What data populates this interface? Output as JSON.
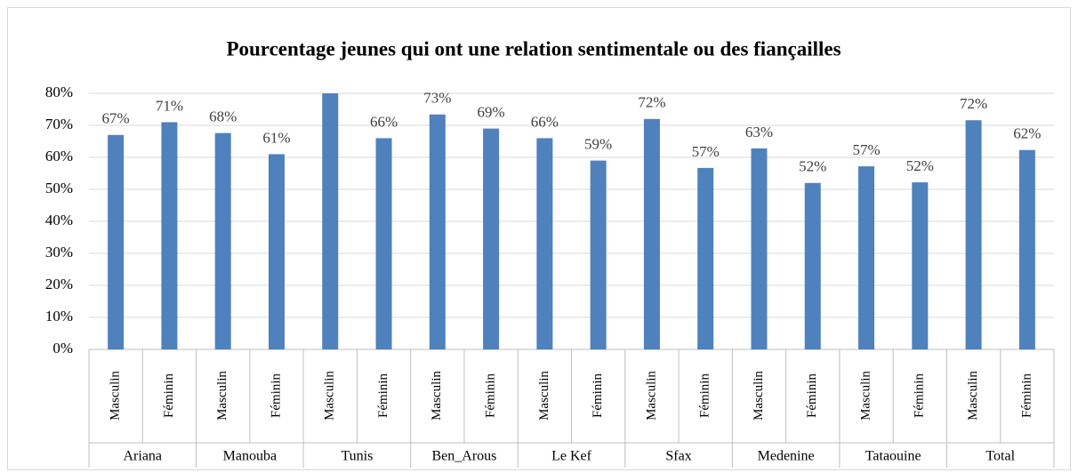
{
  "chart_data": {
    "type": "bar",
    "title": "Pourcentage jeunes qui ont  une relation sentimentale ou des fiançailles",
    "groups": [
      "Ariana",
      "Manouba",
      "Tunis",
      "Ben_Arous",
      "Le Kef",
      "Sfax",
      "Medenine",
      "Tataouine",
      "Total"
    ],
    "categories": [
      "Masculin",
      "Féminin",
      "Masculin",
      "Féminin",
      "Masculin",
      "Féminin",
      "Masculin",
      "Féminin",
      "Masculin",
      "Féminin",
      "Masculin",
      "Féminin",
      "Masculin",
      "Féminin",
      "Masculin",
      "Féminin",
      "Masculin",
      "Féminin"
    ],
    "values": [
      67,
      71,
      67.6,
      61,
      80,
      66,
      73.4,
      69,
      66,
      59,
      72,
      56.7,
      62.8,
      52,
      57.2,
      52.2,
      71.6,
      62.3
    ],
    "value_labels": [
      "67%",
      "71%",
      "68%",
      "61%",
      null,
      "66%",
      "73%",
      "69%",
      "66%",
      "59%",
      "72%",
      "57%",
      "63%",
      "52%",
      "57%",
      "52%",
      "72%",
      "62%"
    ],
    "color": "#4f81bd",
    "ylim": [
      0,
      80
    ],
    "yticks": [
      {
        "value": 0,
        "label": "0%"
      },
      {
        "value": 10,
        "label": "10%"
      },
      {
        "value": 20,
        "label": "20%"
      },
      {
        "value": 30,
        "label": "30%"
      },
      {
        "value": 40,
        "label": "40%"
      },
      {
        "value": 50,
        "label": "50%"
      },
      {
        "value": 60,
        "label": "60%"
      },
      {
        "value": 70,
        "label": "70%"
      },
      {
        "value": 80,
        "label": "80%"
      }
    ],
    "grid": true
  }
}
